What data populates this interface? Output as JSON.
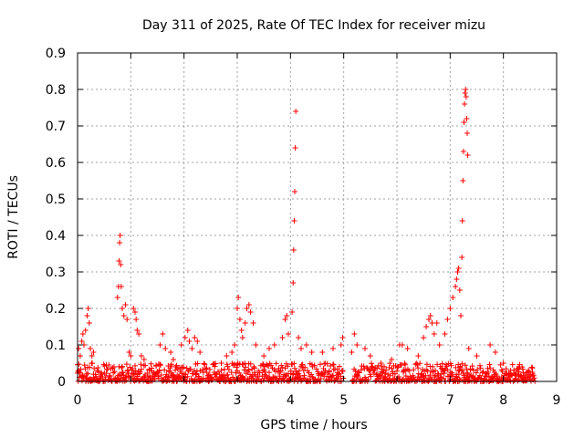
{
  "chart_data": {
    "type": "scatter",
    "title": "Day 311 of 2025, Rate Of TEC Index for receiver mizu",
    "xlabel": "GPS time / hours",
    "ylabel": "ROTI / TECUs",
    "xlim": [
      0,
      9
    ],
    "ylim": [
      0,
      0.9
    ],
    "xticks": [
      "0",
      "1",
      "2",
      "3",
      "4",
      "5",
      "6",
      "7",
      "8",
      "9"
    ],
    "yticks": [
      "0",
      "0.1",
      "0.2",
      "0.3",
      "0.4",
      "0.5",
      "0.6",
      "0.7",
      "0.8",
      "0.9"
    ],
    "grid": true,
    "marker": "+",
    "marker_color": "#ff0000",
    "series": [
      {
        "name": "ROTI",
        "points": [
          [
            0.02,
            0.09
          ],
          [
            0.05,
            0.07
          ],
          [
            0.08,
            0.11
          ],
          [
            0.1,
            0.13
          ],
          [
            0.12,
            0.1
          ],
          [
            0.15,
            0.14
          ],
          [
            0.18,
            0.18
          ],
          [
            0.2,
            0.2
          ],
          [
            0.22,
            0.16
          ],
          [
            0.24,
            0.09
          ],
          [
            0.27,
            0.07
          ],
          [
            0.3,
            0.08
          ],
          [
            0.75,
            0.23
          ],
          [
            0.77,
            0.26
          ],
          [
            0.78,
            0.33
          ],
          [
            0.79,
            0.38
          ],
          [
            0.8,
            0.4
          ],
          [
            0.81,
            0.32
          ],
          [
            0.82,
            0.26
          ],
          [
            0.84,
            0.2
          ],
          [
            0.87,
            0.18
          ],
          [
            0.9,
            0.21
          ],
          [
            0.93,
            0.17
          ],
          [
            0.97,
            0.08
          ],
          [
            1.0,
            0.07
          ],
          [
            1.05,
            0.2
          ],
          [
            1.08,
            0.19
          ],
          [
            1.1,
            0.17
          ],
          [
            1.12,
            0.14
          ],
          [
            1.15,
            0.13
          ],
          [
            1.2,
            0.07
          ],
          [
            1.25,
            0.06
          ],
          [
            1.55,
            0.1
          ],
          [
            1.6,
            0.13
          ],
          [
            1.65,
            0.09
          ],
          [
            1.75,
            0.08
          ],
          [
            1.8,
            0.06
          ],
          [
            1.95,
            0.1
          ],
          [
            2.02,
            0.12
          ],
          [
            2.07,
            0.14
          ],
          [
            2.1,
            0.11
          ],
          [
            2.15,
            0.09
          ],
          [
            2.2,
            0.12
          ],
          [
            2.25,
            0.11
          ],
          [
            2.3,
            0.08
          ],
          [
            2.7,
            0.05
          ],
          [
            2.8,
            0.07
          ],
          [
            2.9,
            0.08
          ],
          [
            2.95,
            0.1
          ],
          [
            3.0,
            0.2
          ],
          [
            3.02,
            0.23
          ],
          [
            3.05,
            0.17
          ],
          [
            3.08,
            0.14
          ],
          [
            3.1,
            0.12
          ],
          [
            3.15,
            0.16
          ],
          [
            3.18,
            0.2
          ],
          [
            3.22,
            0.21
          ],
          [
            3.25,
            0.19
          ],
          [
            3.3,
            0.16
          ],
          [
            3.35,
            0.1
          ],
          [
            3.5,
            0.07
          ],
          [
            3.6,
            0.09
          ],
          [
            3.7,
            0.1
          ],
          [
            3.85,
            0.12
          ],
          [
            3.9,
            0.17
          ],
          [
            3.93,
            0.18
          ],
          [
            3.96,
            0.13
          ],
          [
            4.03,
            0.19
          ],
          [
            4.05,
            0.27
          ],
          [
            4.06,
            0.36
          ],
          [
            4.07,
            0.44
          ],
          [
            4.08,
            0.52
          ],
          [
            4.09,
            0.64
          ],
          [
            4.1,
            0.74
          ],
          [
            4.15,
            0.12
          ],
          [
            4.2,
            0.09
          ],
          [
            4.3,
            0.1
          ],
          [
            4.4,
            0.08
          ],
          [
            4.6,
            0.08
          ],
          [
            4.8,
            0.09
          ],
          [
            4.95,
            0.1
          ],
          [
            4.98,
            0.12
          ],
          [
            5.15,
            0.08
          ],
          [
            5.2,
            0.13
          ],
          [
            5.25,
            0.1
          ],
          [
            5.4,
            0.09
          ],
          [
            5.5,
            0.07
          ],
          [
            5.7,
            0.05
          ],
          [
            5.9,
            0.06
          ],
          [
            6.05,
            0.1
          ],
          [
            6.1,
            0.1
          ],
          [
            6.2,
            0.09
          ],
          [
            6.4,
            0.07
          ],
          [
            6.5,
            0.12
          ],
          [
            6.55,
            0.15
          ],
          [
            6.6,
            0.17
          ],
          [
            6.63,
            0.18
          ],
          [
            6.66,
            0.16
          ],
          [
            6.7,
            0.13
          ],
          [
            6.75,
            0.16
          ],
          [
            6.8,
            0.1
          ],
          [
            6.9,
            0.13
          ],
          [
            6.95,
            0.17
          ],
          [
            7.0,
            0.2
          ],
          [
            7.05,
            0.23
          ],
          [
            7.1,
            0.26
          ],
          [
            7.12,
            0.28
          ],
          [
            7.14,
            0.3
          ],
          [
            7.16,
            0.31
          ],
          [
            7.18,
            0.25
          ],
          [
            7.2,
            0.18
          ],
          [
            7.22,
            0.34
          ],
          [
            7.23,
            0.44
          ],
          [
            7.24,
            0.55
          ],
          [
            7.25,
            0.63
          ],
          [
            7.26,
            0.71
          ],
          [
            7.27,
            0.76
          ],
          [
            7.28,
            0.79
          ],
          [
            7.29,
            0.8
          ],
          [
            7.3,
            0.78
          ],
          [
            7.31,
            0.72
          ],
          [
            7.32,
            0.68
          ],
          [
            7.33,
            0.62
          ],
          [
            7.35,
            0.09
          ],
          [
            7.5,
            0.07
          ],
          [
            7.75,
            0.1
          ],
          [
            7.85,
            0.08
          ],
          [
            8.0,
            0.05
          ],
          [
            8.3,
            0.04
          ],
          [
            8.55,
            0.02
          ]
        ]
      }
    ],
    "baseline_noise": {
      "x_range": [
        0.0,
        8.6
      ],
      "y_range": [
        0.0,
        0.05
      ],
      "gap": [
        5.0,
        5.15
      ]
    }
  }
}
